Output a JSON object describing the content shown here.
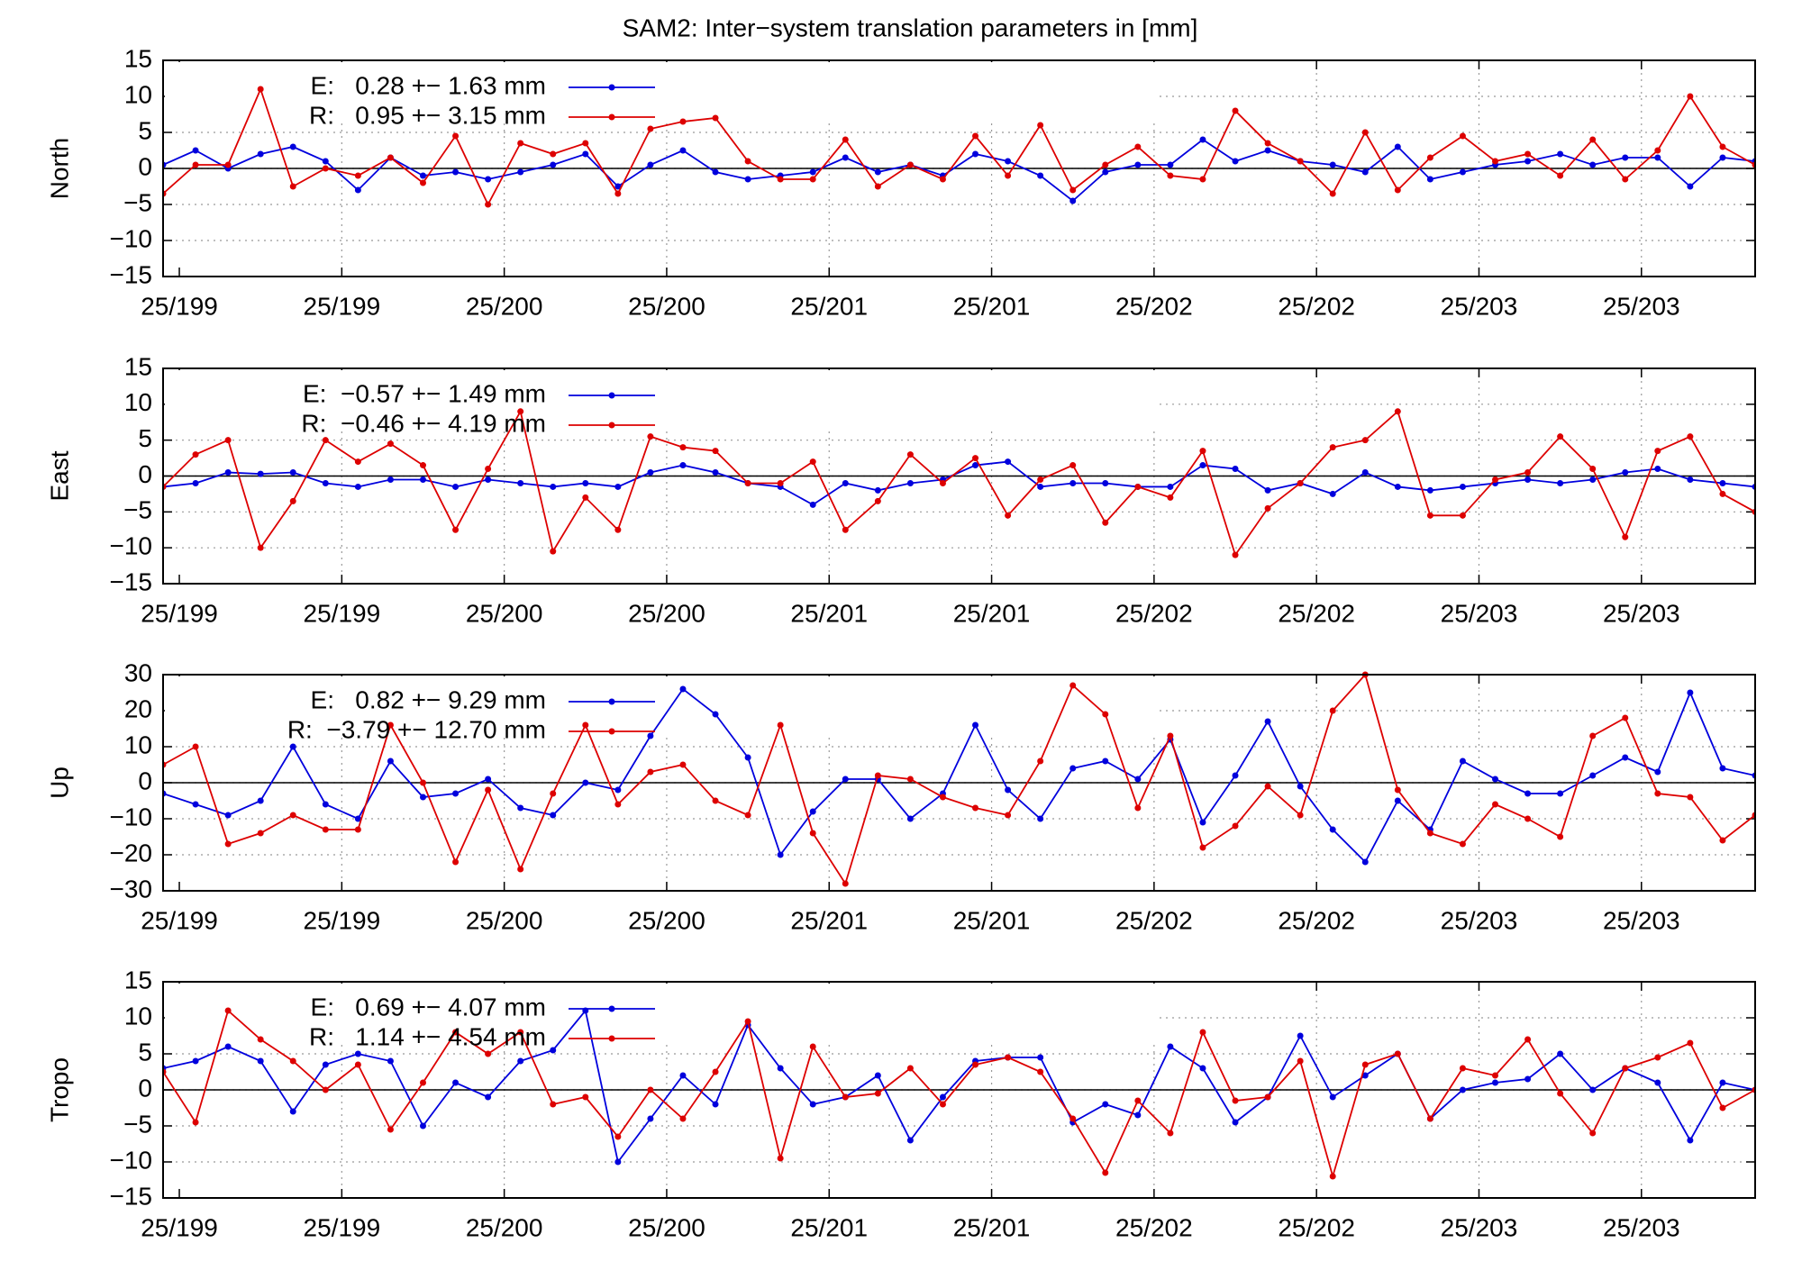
{
  "chart_data": [
    {
      "type": "line",
      "title": "SAM2: Inter−system translation parameters in [mm]",
      "ylabel": "North",
      "xlim": [
        -1,
        97
      ],
      "xticks": [
        {
          "value": 0,
          "label": "25/199"
        },
        {
          "value": 10,
          "label": "25/199"
        },
        {
          "value": 20,
          "label": "25/200"
        },
        {
          "value": 30,
          "label": "25/200"
        },
        {
          "value": 40,
          "label": "25/201"
        },
        {
          "value": 50,
          "label": "25/201"
        },
        {
          "value": 60,
          "label": "25/202"
        },
        {
          "value": 70,
          "label": "25/202"
        },
        {
          "value": 80,
          "label": "25/203"
        },
        {
          "value": 90,
          "label": "25/203"
        }
      ],
      "ylim": [
        -15,
        15
      ],
      "yticks": [
        {
          "value": -15,
          "label": "−15"
        },
        {
          "value": -10,
          "label": "−10"
        },
        {
          "value": -5,
          "label": "−5"
        },
        0,
        5,
        10,
        15
      ],
      "grid": true,
      "legend": "top-left",
      "x": [
        -1,
        1,
        3,
        5,
        7,
        9,
        11,
        13,
        15,
        17,
        19,
        21,
        23,
        25,
        27,
        29,
        31,
        33,
        35,
        37,
        39,
        41,
        43,
        45,
        47,
        49,
        51,
        53,
        55,
        57,
        59,
        61,
        63,
        65,
        67,
        69,
        71,
        73,
        75,
        77,
        79,
        81,
        83,
        85,
        87,
        89,
        91,
        93,
        95,
        97
      ],
      "series": [
        {
          "name": "E:   0.28 +− 1.63 mm",
          "color": "#0000dd",
          "values": [
            0.5,
            2.5,
            0,
            2,
            3,
            1,
            -3,
            1.5,
            -1,
            -0.5,
            -1.5,
            -0.5,
            0.5,
            2,
            -2.5,
            0.5,
            2.5,
            -0.5,
            -1.5,
            -1,
            -0.5,
            1.5,
            -0.5,
            0.5,
            -1,
            2,
            1,
            -1,
            -4.5,
            -0.5,
            0.5,
            0.5,
            4,
            1,
            2.5,
            1,
            0.5,
            -0.5,
            3,
            -1.5,
            -0.5,
            0.5,
            1,
            2,
            0.5,
            1.5,
            1.5,
            -2.5,
            1.5,
            1
          ]
        },
        {
          "name": "R:   0.95 +− 3.15 mm",
          "color": "#dd0000",
          "values": [
            -3.5,
            0.5,
            0.5,
            11,
            -2.5,
            0,
            -1,
            1.5,
            -2,
            4.5,
            -5,
            3.5,
            2,
            3.5,
            -3.5,
            5.5,
            6.5,
            7,
            1,
            -1.5,
            -1.5,
            4,
            -2.5,
            0.5,
            -1.5,
            4.5,
            -1,
            6,
            -3,
            0.5,
            3,
            -1,
            -1.5,
            8,
            3.5,
            1,
            -3.5,
            5,
            -3,
            1.5,
            4.5,
            1,
            2,
            -1,
            4,
            -1.5,
            2.5,
            10,
            3,
            0.5
          ]
        }
      ]
    },
    {
      "type": "line",
      "ylabel": "East",
      "xlim": [
        -1,
        97
      ],
      "xticks": [
        {
          "value": 0,
          "label": "25/199"
        },
        {
          "value": 10,
          "label": "25/199"
        },
        {
          "value": 20,
          "label": "25/200"
        },
        {
          "value": 30,
          "label": "25/200"
        },
        {
          "value": 40,
          "label": "25/201"
        },
        {
          "value": 50,
          "label": "25/201"
        },
        {
          "value": 60,
          "label": "25/202"
        },
        {
          "value": 70,
          "label": "25/202"
        },
        {
          "value": 80,
          "label": "25/203"
        },
        {
          "value": 90,
          "label": "25/203"
        }
      ],
      "ylim": [
        -15,
        15
      ],
      "yticks": [
        {
          "value": -15,
          "label": "−15"
        },
        {
          "value": -10,
          "label": "−10"
        },
        {
          "value": -5,
          "label": "−5"
        },
        0,
        5,
        10,
        15
      ],
      "grid": true,
      "legend": "top-left",
      "x": [
        -1,
        1,
        3,
        5,
        7,
        9,
        11,
        13,
        15,
        17,
        19,
        21,
        23,
        25,
        27,
        29,
        31,
        33,
        35,
        37,
        39,
        41,
        43,
        45,
        47,
        49,
        51,
        53,
        55,
        57,
        59,
        61,
        63,
        65,
        67,
        69,
        71,
        73,
        75,
        77,
        79,
        81,
        83,
        85,
        87,
        89,
        91,
        93,
        95,
        97
      ],
      "series": [
        {
          "name": "E:  −0.57 +− 1.49 mm",
          "color": "#0000dd",
          "values": [
            -1.5,
            -1,
            0.5,
            0.3,
            0.5,
            -1,
            -1.5,
            -0.5,
            -0.5,
            -1.5,
            -0.5,
            -1,
            -1.5,
            -1,
            -1.5,
            0.5,
            1.5,
            0.5,
            -1,
            -1.5,
            -4,
            -1,
            -2,
            -1,
            -0.5,
            1.5,
            2,
            -1.5,
            -1,
            -1,
            -1.5,
            -1.5,
            1.5,
            1,
            -2,
            -1,
            -2.5,
            0.5,
            -1.5,
            -2,
            -1.5,
            -1,
            -0.5,
            -1,
            -0.5,
            0.5,
            1,
            -0.5,
            -1,
            -1.5
          ]
        },
        {
          "name": "R:  −0.46 +− 4.19 mm",
          "color": "#dd0000",
          "values": [
            -1.5,
            3,
            5,
            -10,
            -3.5,
            5,
            2,
            4.5,
            1.5,
            -7.5,
            1,
            9,
            -10.5,
            -3,
            -7.5,
            5.5,
            4,
            3.5,
            -1,
            -1,
            2,
            -7.5,
            -3.5,
            3,
            -1,
            2.5,
            -5.5,
            -0.5,
            1.5,
            -6.5,
            -1.5,
            -3,
            3.5,
            -11,
            -4.5,
            -1,
            4,
            5,
            9,
            -5.5,
            -5.5,
            -0.5,
            0.5,
            5.5,
            1,
            -8.5,
            3.5,
            5.5,
            -2.5,
            -5
          ]
        }
      ]
    },
    {
      "type": "line",
      "ylabel": "Up",
      "xlim": [
        -1,
        97
      ],
      "xticks": [
        {
          "value": 0,
          "label": "25/199"
        },
        {
          "value": 10,
          "label": "25/199"
        },
        {
          "value": 20,
          "label": "25/200"
        },
        {
          "value": 30,
          "label": "25/200"
        },
        {
          "value": 40,
          "label": "25/201"
        },
        {
          "value": 50,
          "label": "25/201"
        },
        {
          "value": 60,
          "label": "25/202"
        },
        {
          "value": 70,
          "label": "25/202"
        },
        {
          "value": 80,
          "label": "25/203"
        },
        {
          "value": 90,
          "label": "25/203"
        }
      ],
      "ylim": [
        -30,
        30
      ],
      "yticks": [
        {
          "value": -30,
          "label": "−30"
        },
        {
          "value": -20,
          "label": "−20"
        },
        {
          "value": -10,
          "label": "−10"
        },
        0,
        10,
        20,
        30
      ],
      "grid": true,
      "legend": "top-left",
      "x": [
        -1,
        1,
        3,
        5,
        7,
        9,
        11,
        13,
        15,
        17,
        19,
        21,
        23,
        25,
        27,
        29,
        31,
        33,
        35,
        37,
        39,
        41,
        43,
        45,
        47,
        49,
        51,
        53,
        55,
        57,
        59,
        61,
        63,
        65,
        67,
        69,
        71,
        73,
        75,
        77,
        79,
        81,
        83,
        85,
        87,
        89,
        91,
        93,
        95,
        97
      ],
      "series": [
        {
          "name": "E:   0.82 +− 9.29 mm",
          "color": "#0000dd",
          "values": [
            -3,
            -6,
            -9,
            -5,
            10,
            -6,
            -10,
            6,
            -4,
            -3,
            1,
            -7,
            -9,
            0,
            -2,
            13,
            26,
            19,
            7,
            -20,
            -8,
            1,
            1,
            -10,
            -3,
            16,
            -2,
            -10,
            4,
            6,
            1,
            12,
            -11,
            2,
            17,
            -1,
            -13,
            -22,
            -5,
            -13,
            6,
            1,
            -3,
            -3,
            2,
            7,
            3,
            25,
            4,
            2
          ]
        },
        {
          "name": "R:  −3.79 +− 12.70 mm",
          "color": "#dd0000",
          "values": [
            5,
            10,
            -17,
            -14,
            -9,
            -13,
            -13,
            16,
            0,
            -22,
            -2,
            -24,
            -3,
            16,
            -6,
            3,
            5,
            -5,
            -9,
            16,
            -14,
            -28,
            2,
            1,
            -4,
            -7,
            -9,
            6,
            27,
            19,
            -7,
            13,
            -18,
            -12,
            -1,
            -9,
            20,
            30,
            -2,
            -14,
            -17,
            -6,
            -10,
            -15,
            13,
            18,
            -3,
            -4,
            -16,
            -9
          ]
        }
      ]
    },
    {
      "type": "line",
      "ylabel": "Tropo",
      "xlim": [
        -1,
        97
      ],
      "xticks": [
        {
          "value": 0,
          "label": "25/199"
        },
        {
          "value": 10,
          "label": "25/199"
        },
        {
          "value": 20,
          "label": "25/200"
        },
        {
          "value": 30,
          "label": "25/200"
        },
        {
          "value": 40,
          "label": "25/201"
        },
        {
          "value": 50,
          "label": "25/201"
        },
        {
          "value": 60,
          "label": "25/202"
        },
        {
          "value": 70,
          "label": "25/202"
        },
        {
          "value": 80,
          "label": "25/203"
        },
        {
          "value": 90,
          "label": "25/203"
        }
      ],
      "ylim": [
        -15,
        15
      ],
      "yticks": [
        {
          "value": -15,
          "label": "−15"
        },
        {
          "value": -10,
          "label": "−10"
        },
        {
          "value": -5,
          "label": "−5"
        },
        0,
        5,
        10,
        15
      ],
      "grid": true,
      "legend": "top-left",
      "x": [
        -1,
        1,
        3,
        5,
        7,
        9,
        11,
        13,
        15,
        17,
        19,
        21,
        23,
        25,
        27,
        29,
        31,
        33,
        35,
        37,
        39,
        41,
        43,
        45,
        47,
        49,
        51,
        53,
        55,
        57,
        59,
        61,
        63,
        65,
        67,
        69,
        71,
        73,
        75,
        77,
        79,
        81,
        83,
        85,
        87,
        89,
        91,
        93,
        95,
        97
      ],
      "series": [
        {
          "name": "E:   0.69 +− 4.07 mm",
          "color": "#0000dd",
          "values": [
            3,
            4,
            6,
            4,
            -3,
            3.5,
            5,
            4,
            -5,
            1,
            -1,
            4,
            5.5,
            11,
            -10,
            -4,
            2,
            -2,
            9,
            3,
            -2,
            -1,
            2,
            -7,
            -1,
            4,
            4.5,
            4.5,
            -4.5,
            -2,
            -3.5,
            6,
            3,
            -4.5,
            -1,
            7.5,
            -1,
            2,
            5,
            -4,
            0,
            1,
            1.5,
            5,
            0,
            3,
            1,
            -7,
            1,
            0
          ]
        },
        {
          "name": "R:   1.14 +− 4.54 mm",
          "color": "#dd0000",
          "values": [
            2.5,
            -4.5,
            11,
            7,
            4,
            0,
            3.5,
            -5.5,
            1,
            8,
            5,
            8,
            -2,
            -1,
            -6.5,
            0,
            -4,
            2.5,
            9.5,
            -9.5,
            6,
            -1,
            -0.5,
            3,
            -2,
            3.5,
            4.5,
            2.5,
            -4,
            -11.5,
            -1.5,
            -6,
            8,
            -1.5,
            -1,
            4,
            -12,
            3.5,
            5,
            -4,
            3,
            2,
            7,
            -0.5,
            -6,
            3,
            4.5,
            6.5,
            -2.5,
            0
          ]
        }
      ]
    }
  ]
}
